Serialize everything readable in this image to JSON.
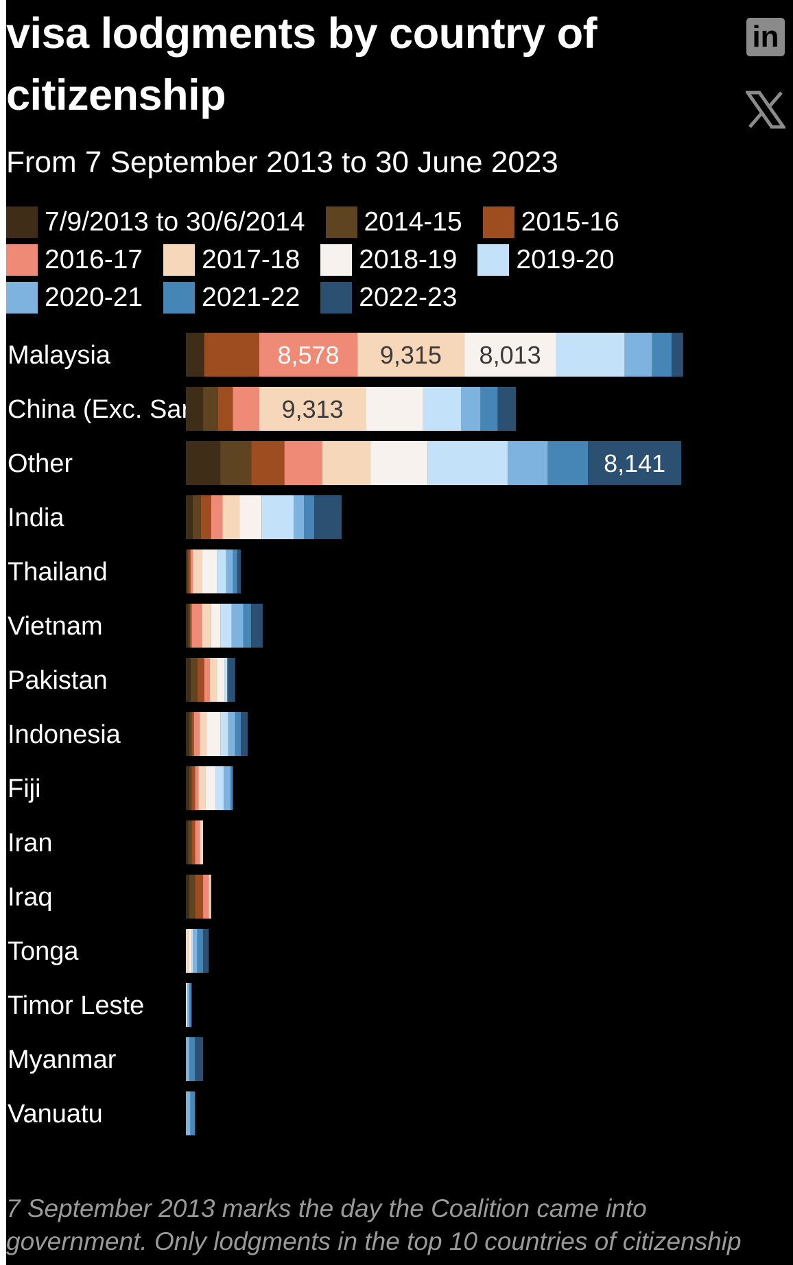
{
  "header": {
    "title": "visa lodgments by country of citizenship",
    "subtitle": "From 7 September 2013 to 30 June 2023"
  },
  "share": [
    {
      "name": "linkedin-share-button",
      "icon": "linkedin-icon",
      "glyph": "in"
    },
    {
      "name": "x-share-button",
      "icon": "x-icon",
      "glyph": "𝕏"
    }
  ],
  "footnote": "7 September 2013 marks the day the Coalition came into government. Only lodgments in the top 10 countries of citizenship",
  "colors": {
    "background": "#000000",
    "text": "#ffffff",
    "data_label_dark": "#3a3a3a",
    "data_label_light": "#ffffff"
  },
  "chart_data": {
    "type": "bar",
    "orientation": "horizontal",
    "stacked": true,
    "title": "visa lodgments by country of citizenship",
    "subtitle": "From 7 September 2013 to 30 June 2023",
    "legend_position": "top",
    "grid": false,
    "categories": [
      "Malaysia",
      "China (Exc. Sar)",
      "Other",
      "India",
      "Thailand",
      "Vietnam",
      "Pakistan",
      "Indonesia",
      "Fiji",
      "Iran",
      "Iraq",
      "Tonga",
      "Timor Leste",
      "Myanmar",
      "Vanuatu"
    ],
    "series": [
      {
        "name": "7/9/2013 to 30/6/2014",
        "color": "#3f2d17",
        "values": [
          1600,
          1500,
          3000,
          600,
          100,
          200,
          400,
          300,
          300,
          200,
          300,
          0,
          0,
          0,
          0
        ]
      },
      {
        "name": "2014-15",
        "color": "#5e4420",
        "values": [
          0,
          1300,
          2700,
          700,
          100,
          150,
          600,
          200,
          200,
          300,
          500,
          0,
          0,
          0,
          0
        ]
      },
      {
        "name": "2015-16",
        "color": "#9e4d21",
        "values": [
          4800,
          1300,
          2900,
          900,
          200,
          150,
          600,
          200,
          300,
          300,
          700,
          0,
          0,
          0,
          0
        ]
      },
      {
        "name": "2016-17",
        "color": "#ef8a77",
        "values": [
          8578,
          2300,
          3300,
          1000,
          200,
          900,
          500,
          500,
          300,
          400,
          500,
          0,
          0,
          0,
          0
        ]
      },
      {
        "name": "2017-18",
        "color": "#f6d7b9",
        "values": [
          9315,
          9313,
          4200,
          1500,
          800,
          800,
          600,
          600,
          600,
          300,
          200,
          300,
          0,
          0,
          0
        ]
      },
      {
        "name": "2018-19",
        "color": "#f8f2ef",
        "values": [
          8013,
          5000,
          5000,
          1900,
          1300,
          800,
          700,
          1200,
          900,
          0,
          0,
          200,
          100,
          0,
          0
        ]
      },
      {
        "name": "2019-20",
        "color": "#c3e1f8",
        "values": [
          6000,
          3300,
          7000,
          2800,
          800,
          1000,
          200,
          700,
          700,
          0,
          0,
          100,
          0,
          0,
          0
        ]
      },
      {
        "name": "2020-21",
        "color": "#7eb3df",
        "values": [
          2400,
          1700,
          3500,
          900,
          600,
          1000,
          0,
          600,
          600,
          0,
          0,
          400,
          200,
          300,
          400
        ]
      },
      {
        "name": "2021-22",
        "color": "#4686b7",
        "values": [
          1700,
          1500,
          3500,
          900,
          400,
          700,
          100,
          500,
          200,
          0,
          0,
          500,
          200,
          500,
          400
        ]
      },
      {
        "name": "2022-23",
        "color": "#2c5072",
        "values": [
          1000,
          1600,
          8141,
          2400,
          300,
          1000,
          600,
          600,
          0,
          0,
          0,
          500,
          0,
          700,
          0
        ]
      }
    ],
    "data_labels": [
      {
        "category": "Malaysia",
        "series": "2016-17",
        "text": "8,578"
      },
      {
        "category": "Malaysia",
        "series": "2017-18",
        "text": "9,315"
      },
      {
        "category": "Malaysia",
        "series": "2018-19",
        "text": "8,013"
      },
      {
        "category": "China (Exc. Sar)",
        "series": "2017-18",
        "text": "9,313"
      },
      {
        "category": "Other",
        "series": "2022-23",
        "text": "8,141"
      }
    ]
  }
}
